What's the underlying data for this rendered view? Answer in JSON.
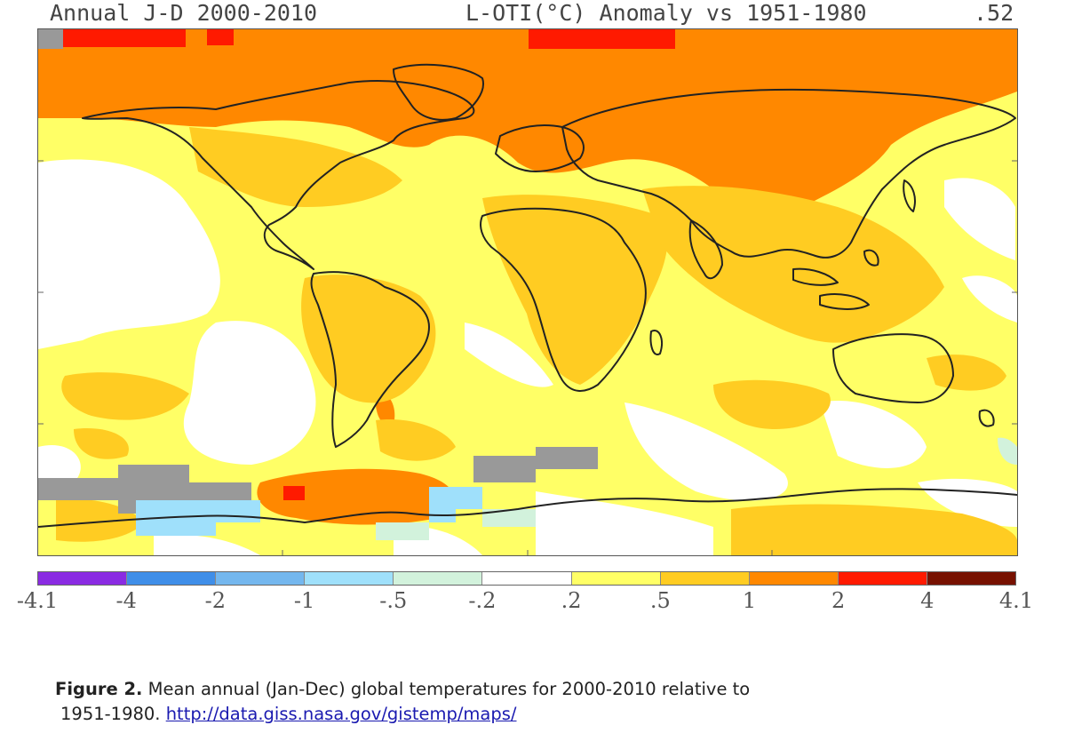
{
  "header": {
    "title_left": "Annual J-D 2000-2010",
    "title_mid": "L-OTI(°C) Anomaly vs 1951-1980",
    "title_right": ".52"
  },
  "map": {
    "description_type": "global temperature anomaly map",
    "colors": {
      "land_outline": "#222222",
      "gray_no_data": "#999999"
    }
  },
  "scale": {
    "bins": [
      {
        "color": "#8a2be2"
      },
      {
        "color": "#3f8ee8"
      },
      {
        "color": "#74b7ee"
      },
      {
        "color": "#9fe0fb"
      },
      {
        "color": "#d2f2dc"
      },
      {
        "color": "#ffffff"
      },
      {
        "color": "#ffff66"
      },
      {
        "color": "#ffcc22"
      },
      {
        "color": "#ff8800"
      },
      {
        "color": "#ff1a00"
      },
      {
        "color": "#771100"
      }
    ],
    "ticks": [
      "-4.1",
      "-4",
      "-2",
      "-1",
      "-.5",
      "-.2",
      ".2",
      ".5",
      "1",
      "2",
      "4",
      "4.1"
    ]
  },
  "caption": {
    "label": "Figure 2.",
    "text_line1": " Mean annual (Jan-Dec) global temperatures for 2000-2010 relative to",
    "text_line2": "1951-1980.  ",
    "link": "http://data.giss.nasa.gov/gistemp/maps/"
  }
}
